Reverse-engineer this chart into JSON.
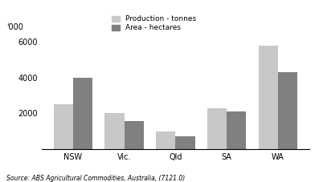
{
  "categories": [
    "NSW",
    "Vic.",
    "Qld",
    "SA",
    "WA"
  ],
  "production": [
    2500,
    2000,
    1000,
    2300,
    5800
  ],
  "area": [
    4000,
    1550,
    700,
    2100,
    4300
  ],
  "production_color": "#c8c8c8",
  "area_color": "#808080",
  "ylabel": "'000",
  "ylim": [
    0,
    6500
  ],
  "yticks": [
    0,
    2000,
    4000,
    6000
  ],
  "legend_production": "Production - tonnes",
  "legend_area": "Area - hectares",
  "source": "Source: ABS Agricultural Commodities, Australia, (7121.0)",
  "bar_width": 0.38
}
